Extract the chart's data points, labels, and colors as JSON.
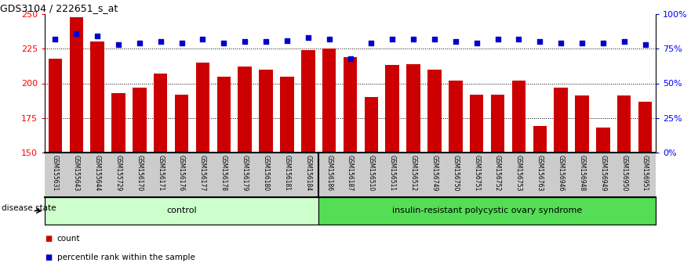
{
  "title": "GDS3104 / 222651_s_at",
  "samples": [
    "GSM155631",
    "GSM155643",
    "GSM155644",
    "GSM155729",
    "GSM156170",
    "GSM156171",
    "GSM156176",
    "GSM156177",
    "GSM156178",
    "GSM156179",
    "GSM156180",
    "GSM156181",
    "GSM156184",
    "GSM156186",
    "GSM156187",
    "GSM156510",
    "GSM156511",
    "GSM156512",
    "GSM156749",
    "GSM156750",
    "GSM156751",
    "GSM156752",
    "GSM156753",
    "GSM156763",
    "GSM156946",
    "GSM156948",
    "GSM156949",
    "GSM156950",
    "GSM156951"
  ],
  "bar_values": [
    218,
    248,
    230,
    193,
    197,
    207,
    192,
    215,
    205,
    212,
    210,
    205,
    224,
    225,
    219,
    190,
    213,
    214,
    210,
    202,
    192,
    192,
    202,
    169,
    197,
    191,
    168,
    191,
    187
  ],
  "percentile_values": [
    82,
    86,
    84,
    78,
    79,
    80,
    79,
    82,
    79,
    80,
    80,
    81,
    83,
    82,
    68,
    79,
    82,
    82,
    82,
    80,
    79,
    82,
    82,
    80,
    79,
    79,
    79,
    80,
    78
  ],
  "control_count": 13,
  "disease_count": 16,
  "control_label": "control",
  "disease_label": "insulin-resistant polycystic ovary syndrome",
  "disease_state_label": "disease state",
  "y_min": 150,
  "y_max": 250,
  "y_ticks_left": [
    150,
    175,
    200,
    225,
    250
  ],
  "y_ticks_right": [
    0,
    25,
    50,
    75,
    100
  ],
  "bar_color": "#cc0000",
  "dot_color": "#0000cc",
  "control_bg": "#ccffcc",
  "disease_bg": "#55dd55",
  "xlabel_area_bg": "#cccccc",
  "bar_bottom": 150,
  "y_range": 100
}
